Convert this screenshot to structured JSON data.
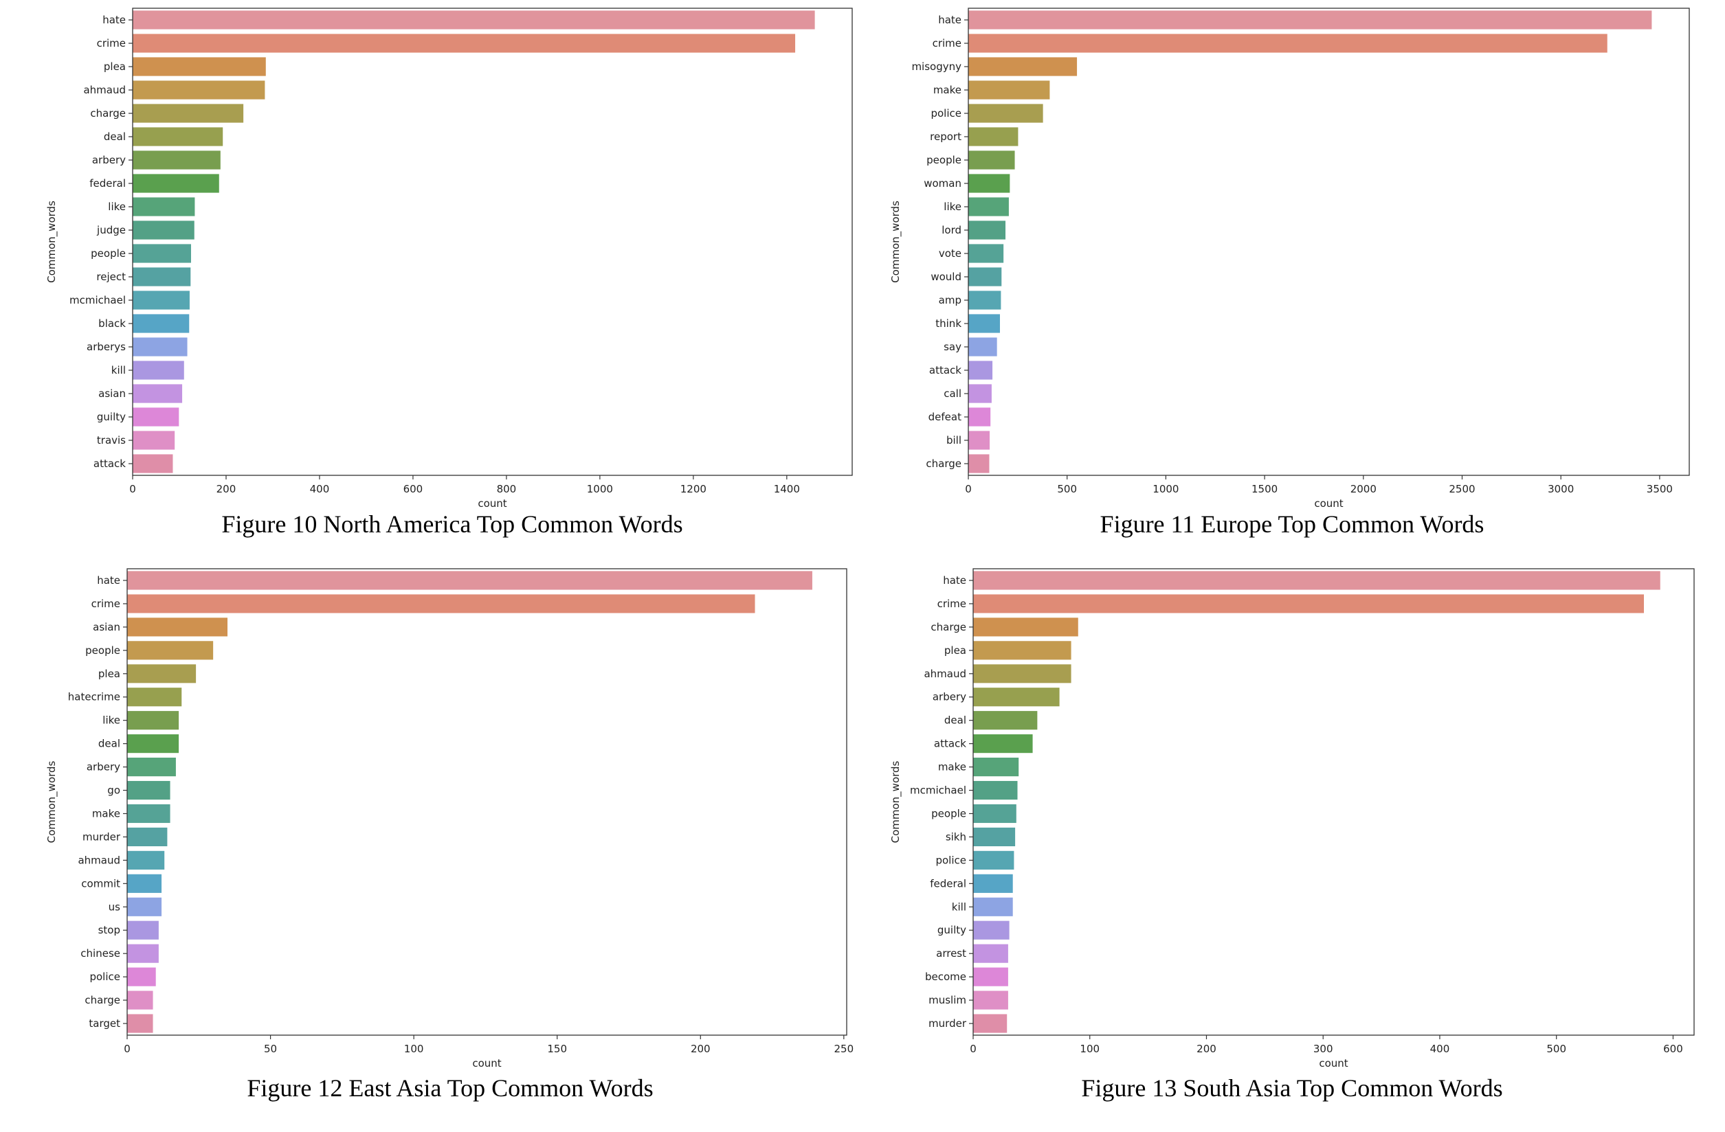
{
  "palette": [
    "#e0949c",
    "#df8b76",
    "#cf914f",
    "#c39a4f",
    "#a89e50",
    "#97a04f",
    "#789e4f",
    "#5aa04e",
    "#56a479",
    "#53a186",
    "#55a396",
    "#55a2a2",
    "#56a6b2",
    "#56a5c6",
    "#8da4e3",
    "#aa97e1",
    "#c393e1",
    "#dd87d8",
    "#df8fc6",
    "#df8ea8"
  ],
  "chart_data": [
    {
      "type": "bar",
      "orientation": "horizontal",
      "caption": "Figure 10 North America Top Common Words",
      "xlabel": "count",
      "ylabel": "Common_words",
      "xlim": [
        0,
        1540
      ],
      "xticks": [
        0,
        200,
        400,
        600,
        800,
        1000,
        1200,
        1400
      ],
      "xtick_labels": [
        "0",
        "200",
        "400",
        "600",
        "800",
        "1000",
        "1200",
        "1400"
      ],
      "categories": [
        "hate",
        "crime",
        "plea",
        "ahmaud",
        "charge",
        "deal",
        "arbery",
        "federal",
        "like",
        "judge",
        "people",
        "reject",
        "mcmichael",
        "black",
        "arberys",
        "kill",
        "asian",
        "guilty",
        "travis",
        "attack"
      ],
      "values": [
        1460,
        1418,
        285,
        283,
        237,
        193,
        188,
        185,
        133,
        132,
        125,
        124,
        122,
        121,
        117,
        110,
        106,
        99,
        90,
        86
      ]
    },
    {
      "type": "bar",
      "orientation": "horizontal",
      "caption": "Figure 11 Europe Top Common Words",
      "xlabel": "count",
      "ylabel": "Common_words",
      "xlim": [
        0,
        3650
      ],
      "xticks": [
        0,
        500,
        1000,
        1500,
        2000,
        2500,
        3000,
        3500
      ],
      "xtick_labels": [
        "0",
        "500",
        "1000",
        "1500",
        "2000",
        "2500",
        "3000",
        "3500"
      ],
      "categories": [
        "hate",
        "crime",
        "misogyny",
        "make",
        "police",
        "report",
        "people",
        "woman",
        "like",
        "lord",
        "vote",
        "would",
        "amp",
        "think",
        "say",
        "attack",
        "call",
        "defeat",
        "bill",
        "charge"
      ],
      "values": [
        3460,
        3235,
        550,
        412,
        378,
        252,
        235,
        210,
        205,
        188,
        178,
        168,
        165,
        160,
        145,
        122,
        118,
        112,
        108,
        106
      ]
    },
    {
      "type": "bar",
      "orientation": "horizontal",
      "caption": "Figure 12 East Asia Top Common Words",
      "xlabel": "count",
      "ylabel": "Common_words",
      "xlim": [
        0,
        251
      ],
      "xticks": [
        0,
        50,
        100,
        150,
        200,
        250
      ],
      "xtick_labels": [
        "0",
        "50",
        "100",
        "150",
        "200",
        "250"
      ],
      "categories": [
        "hate",
        "crime",
        "asian",
        "people",
        "plea",
        "hatecrime",
        "like",
        "deal",
        "arbery",
        "go",
        "make",
        "murder",
        "ahmaud",
        "commit",
        "us",
        "stop",
        "chinese",
        "police",
        "charge",
        "target"
      ],
      "values": [
        239,
        219,
        35,
        30,
        24,
        19,
        18,
        18,
        17,
        15,
        15,
        14,
        13,
        12,
        12,
        11,
        11,
        10,
        9,
        9
      ]
    },
    {
      "type": "bar",
      "orientation": "horizontal",
      "caption": "Figure 13 South Asia Top Common Words",
      "xlabel": "count",
      "ylabel": "Common_words",
      "xlim": [
        0,
        618
      ],
      "xticks": [
        0,
        100,
        200,
        300,
        400,
        500,
        600
      ],
      "xtick_labels": [
        "0",
        "100",
        "200",
        "300",
        "400",
        "500",
        "600"
      ],
      "categories": [
        "hate",
        "crime",
        "charge",
        "plea",
        "ahmaud",
        "arbery",
        "deal",
        "attack",
        "make",
        "mcmichael",
        "people",
        "sikh",
        "police",
        "federal",
        "kill",
        "guilty",
        "arrest",
        "become",
        "muslim",
        "murder"
      ],
      "values": [
        589,
        575,
        90,
        84,
        84,
        74,
        55,
        51,
        39,
        38,
        37,
        36,
        35,
        34,
        34,
        31,
        30,
        30,
        30,
        29
      ]
    }
  ]
}
